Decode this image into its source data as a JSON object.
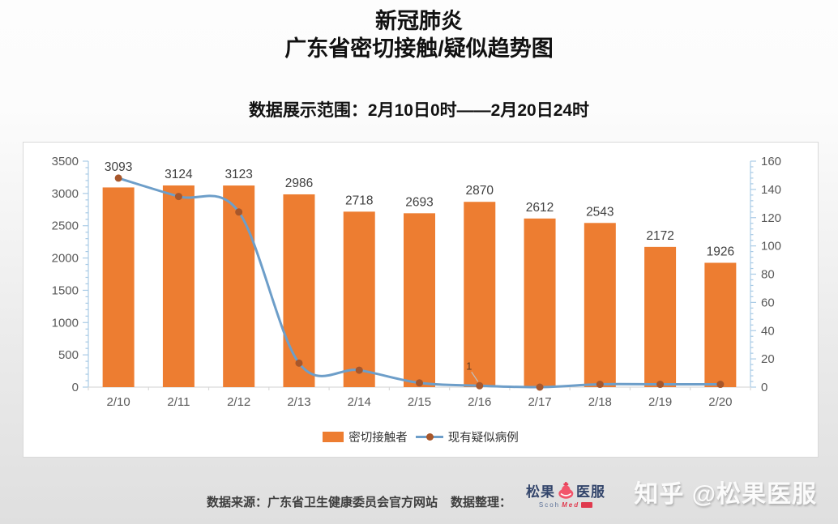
{
  "header": {
    "title_line1": "新冠肺炎",
    "title_line2": "广东省密切接触/疑似趋势图",
    "subtitle": "数据展示范围：2月10日0时——2月20日24时"
  },
  "chart_data": {
    "type": "bar",
    "title": "广东省密切接触/疑似趋势图",
    "categories": [
      "2/10",
      "2/11",
      "2/12",
      "2/13",
      "2/14",
      "2/15",
      "2/16",
      "2/17",
      "2/18",
      "2/19",
      "2/20"
    ],
    "series": [
      {
        "name": "密切接触者",
        "type": "bar",
        "axis": "left",
        "color": "#ED7D31",
        "values": [
          3093,
          3124,
          3123,
          2986,
          2718,
          2693,
          2870,
          2612,
          2543,
          2172,
          1926
        ],
        "data_labels": [
          "3093",
          "3124",
          "3123",
          "2986",
          "2718",
          "2693",
          "2870",
          "2612",
          "2543",
          "2172",
          "1926"
        ]
      },
      {
        "name": "现有疑似病例",
        "type": "line",
        "axis": "right",
        "color": "#6D9EC9",
        "marker_color": "#A8572B",
        "values": [
          148,
          135,
          124,
          17,
          12,
          3,
          1,
          0,
          2,
          2,
          2
        ],
        "point_labels": {
          "6": "1"
        }
      }
    ],
    "left_axis": {
      "min": 0,
      "max": 3500,
      "major": 500,
      "minor": 100,
      "tick_labels": [
        "0",
        "500",
        "1000",
        "1500",
        "2000",
        "2500",
        "3000",
        "3500"
      ]
    },
    "right_axis": {
      "min": 0,
      "max": 160,
      "major": 20,
      "minor": 4,
      "tick_labels": [
        "0",
        "20",
        "40",
        "60",
        "80",
        "100",
        "120",
        "140",
        "160"
      ]
    },
    "grid": false,
    "legend_position": "bottom"
  },
  "footer": {
    "source_label": "数据来源：广东省卫生健康委员会官方网站",
    "credit_label": "数据整理：",
    "logo_name_left": "松果",
    "logo_name_right": "医服",
    "logo_sub_left": "Scoh",
    "logo_sub_right": "Med",
    "watermark": "知乎 @松果医服"
  },
  "colors": {
    "bar": "#ED7D31",
    "line": "#6D9EC9",
    "marker": "#A8572B",
    "axis": "#A9CBE6",
    "baseline": "#D9D9D9",
    "tick_text": "#595959",
    "bar_label_text": "#404040"
  }
}
